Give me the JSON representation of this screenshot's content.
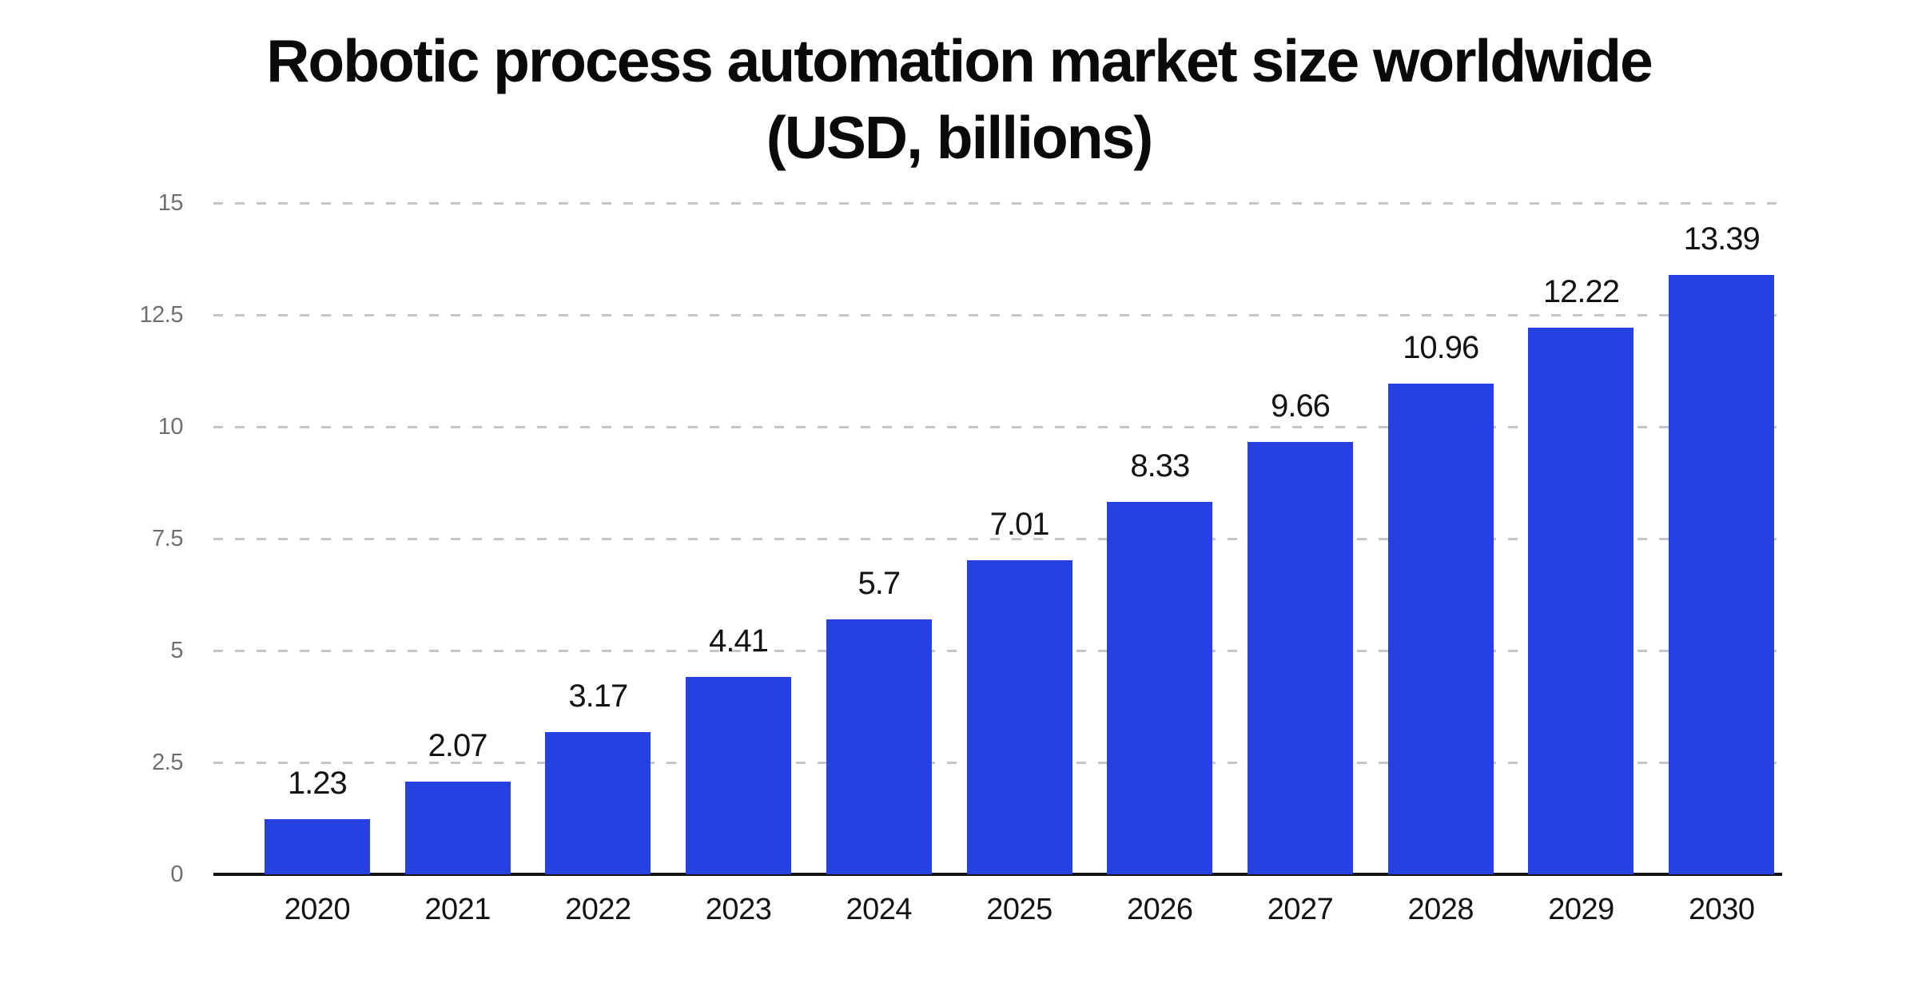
{
  "chart_data": {
    "type": "bar",
    "title": "Robotic process automation market size worldwide",
    "subtitle": "(USD, billions)",
    "categories": [
      "2020",
      "2021",
      "2022",
      "2023",
      "2024",
      "2025",
      "2026",
      "2027",
      "2028",
      "2029",
      "2030"
    ],
    "values": [
      1.23,
      2.07,
      3.17,
      4.41,
      5.7,
      7.01,
      8.33,
      9.66,
      10.96,
      12.22,
      13.39
    ],
    "data_labels": [
      "1.23",
      "2.07",
      "3.17",
      "4.41",
      "5.7",
      "7.01",
      "8.33",
      "9.66",
      "10.96",
      "12.22",
      "13.39"
    ],
    "xlabel": "",
    "ylabel": "",
    "ylim": [
      0,
      15
    ],
    "y_ticks": [
      0,
      2.5,
      5,
      7.5,
      10,
      12.5,
      15
    ],
    "y_tick_labels": [
      "0",
      "2.5",
      "5",
      "7.5",
      "10",
      "12.5",
      "15"
    ],
    "grid": "horizontal-dashed",
    "legend_position": "none",
    "colors": {
      "bar": "#2640e2",
      "axis_line": "#141414",
      "gridline": "#c6c6c6",
      "y_tick_label": "#6f6f6f",
      "data_label": "#131313",
      "title": "#0a0a0a",
      "background": "#ffffff"
    }
  }
}
